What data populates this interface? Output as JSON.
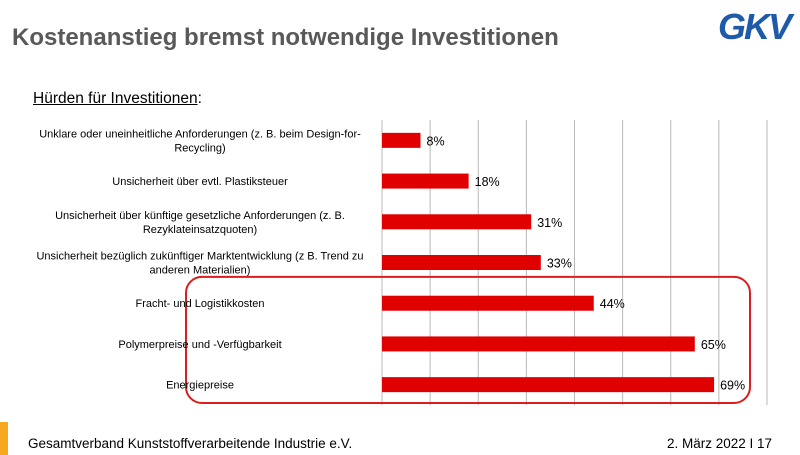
{
  "slide": {
    "title": "Kostenanstieg bremst notwendige Investitionen",
    "subtitle": "Hürden für Investitionen",
    "subtitle_suffix": ":",
    "logo_text": "GKV",
    "footer_left": "Gesamtverband Kunststoffverarbeitende Industrie e.V.",
    "footer_right": "2. März 2022 I 17"
  },
  "colors": {
    "bar": "#e00000",
    "highlight_box": "#d81e1e",
    "logo": "#1f5aa8",
    "accent": "#f7a823"
  },
  "chart_data": {
    "type": "bar",
    "orientation": "horizontal",
    "categories": [
      [
        "Unklare oder uneinheitliche Anforderungen (z. B. beim Design-for-",
        "Recycling)"
      ],
      [
        "Unsicherheit über evtl. Plastiksteuer"
      ],
      [
        "Unsicherheit über künftige gesetzliche Anforderungen (z. B.",
        "Rezyklateinsatzquoten)"
      ],
      [
        "Unsicherheit bezüglich zukünftiger Marktentwicklung (z B. Trend zu",
        "anderen Materialien)"
      ],
      [
        "Fracht- und Logistikkosten"
      ],
      [
        "Polymerpreise und -Verfügbarkeit"
      ],
      [
        "Energiepreise"
      ]
    ],
    "values": [
      8,
      18,
      31,
      33,
      44,
      65,
      69
    ],
    "value_labels": [
      "8%",
      "18%",
      "31%",
      "33%",
      "44%",
      "65%",
      "69%"
    ],
    "unit": "%",
    "xlim": [
      0,
      80
    ],
    "grid": true,
    "highlighted_categories": [
      4,
      5,
      6
    ]
  }
}
